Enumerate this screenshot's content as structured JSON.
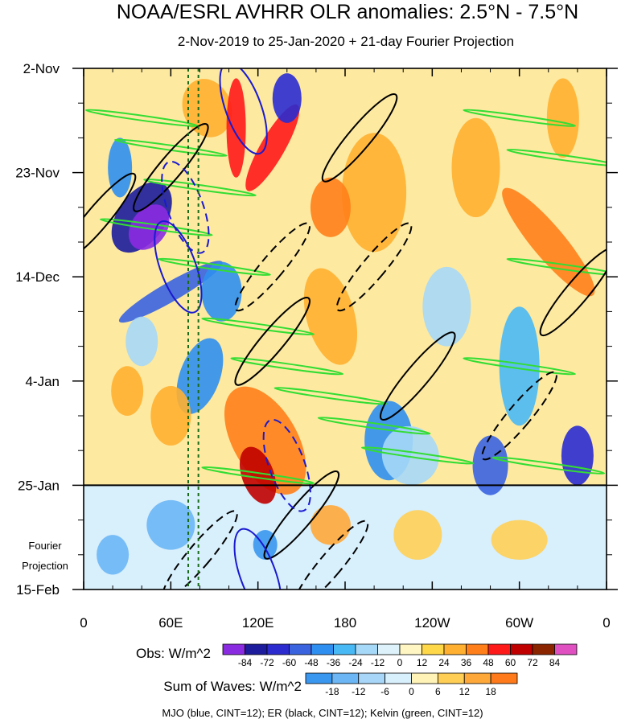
{
  "chart_data": {
    "type": "heatmap",
    "title": "NOAA/ESRL AVHRR OLR anomalies: 2.5°N - 7.5°N",
    "subtitle": "2-Nov-2019 to 25-Jan-2020 + 21-day Fourier Projection",
    "x_axis": {
      "ticks": [
        "0",
        "60E",
        "120E",
        "180",
        "120W",
        "60W",
        "0"
      ],
      "tick_values": [
        0,
        60,
        120,
        180,
        240,
        300,
        360
      ],
      "range": [
        0,
        360
      ]
    },
    "y_axis": {
      "ticks": [
        "2-Nov",
        "23-Nov",
        "14-Dec",
        "4-Jan",
        "25-Jan",
        "15-Feb"
      ],
      "tick_days": [
        0,
        21,
        42,
        63,
        84,
        105
      ],
      "range_days": [
        0,
        105
      ],
      "projection_start_day": 84,
      "projection_label": [
        "Fourier",
        "Projection"
      ]
    },
    "reference_lines": [
      {
        "type": "dashed-vertical",
        "longitude": 72,
        "color": "#1a6b1a"
      },
      {
        "type": "dashed-vertical",
        "longitude": 79,
        "color": "#1a6b1a"
      },
      {
        "type": "solid-horizontal",
        "day": 84,
        "color": "#000000"
      }
    ],
    "obs_colorbar": {
      "label": "Obs: W/m^2",
      "levels": [
        "-84",
        "-72",
        "-60",
        "-48",
        "-36",
        "-24",
        "-12",
        "0",
        "12",
        "24",
        "36",
        "48",
        "60",
        "72",
        "84"
      ],
      "colors": [
        "#8a2be2",
        "#1c1c9c",
        "#2b2bd0",
        "#3a63e0",
        "#2f8ff0",
        "#49b9f5",
        "#a6d8f7",
        "#ddf2fb",
        "#fff6c4",
        "#ffd84a",
        "#ffb030",
        "#ff7f1a",
        "#ff1a1a",
        "#c00000",
        "#8b2500",
        "#e050c0"
      ]
    },
    "waves_colorbar": {
      "label": "Sum of Waves: W/m^2",
      "levels": [
        "-18",
        "-12",
        "-6",
        "0",
        "6",
        "12",
        "18"
      ],
      "colors": [
        "#3a97f0",
        "#6cb6f5",
        "#a8d6f8",
        "#d8effc",
        "#fff3b8",
        "#ffcf55",
        "#ffa83a",
        "#ff7a1a"
      ]
    },
    "footnote": "MJO (blue, CINT=12); ER (black, CINT=12); Kelvin (green, CINT=12)",
    "series": [
      {
        "name": "MJO",
        "color": "#1a1ad0",
        "contour_interval": 12
      },
      {
        "name": "ER",
        "color": "#000000",
        "contour_interval": 12
      },
      {
        "name": "Kelvin",
        "color": "#33dd33",
        "contour_interval": 12
      }
    ]
  }
}
